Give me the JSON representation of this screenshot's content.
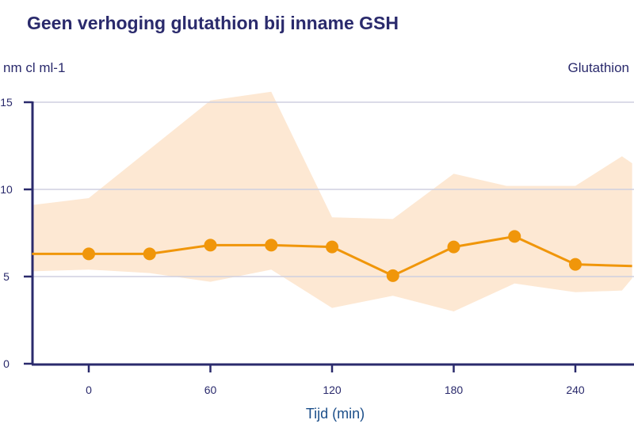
{
  "chart_data": {
    "type": "line",
    "title": "Geen verhoging glutathion bij inname GSH",
    "ylabel": "nm cl ml-1",
    "xlabel": "Tijd (min)",
    "xlim": [
      -28,
      268
    ],
    "ylim": [
      0,
      15
    ],
    "xticks": [
      "0",
      "60",
      "120",
      "180",
      "240"
    ],
    "yticks": [
      "0",
      "5",
      "10",
      "15"
    ],
    "grid": "horizontal",
    "legend": "top-right",
    "series": [
      {
        "name": "Glutathion",
        "color": "#f0960a",
        "x": [
          0,
          30,
          60,
          90,
          120,
          150,
          180,
          210,
          240
        ],
        "y": [
          6.3,
          6.3,
          6.8,
          6.8,
          6.7,
          5.05,
          6.7,
          7.3,
          5.7
        ],
        "line_start": {
          "x": -28,
          "y": 6.3
        },
        "line_end": {
          "x": 268,
          "y": 5.6
        }
      }
    ],
    "band": {
      "color": "#fde8d3",
      "upper": {
        "x": [
          -28,
          0,
          60,
          90,
          120,
          150,
          180,
          206,
          240,
          263,
          268
        ],
        "y": [
          9.1,
          9.5,
          15.1,
          15.6,
          8.4,
          8.3,
          10.9,
          10.2,
          10.2,
          11.9,
          11.5
        ]
      },
      "lower": {
        "x": [
          -28,
          0,
          30,
          60,
          90,
          120,
          150,
          180,
          210,
          240,
          263,
          268
        ],
        "y": [
          5.3,
          5.4,
          5.2,
          4.7,
          5.4,
          3.2,
          3.9,
          3.0,
          4.6,
          4.1,
          4.2,
          4.9
        ]
      }
    },
    "colors": {
      "axis": "#2a2a6c",
      "grid": "#cfcfe0",
      "title": "#2a2a6c",
      "xlabel": "#1c4f8a"
    }
  }
}
